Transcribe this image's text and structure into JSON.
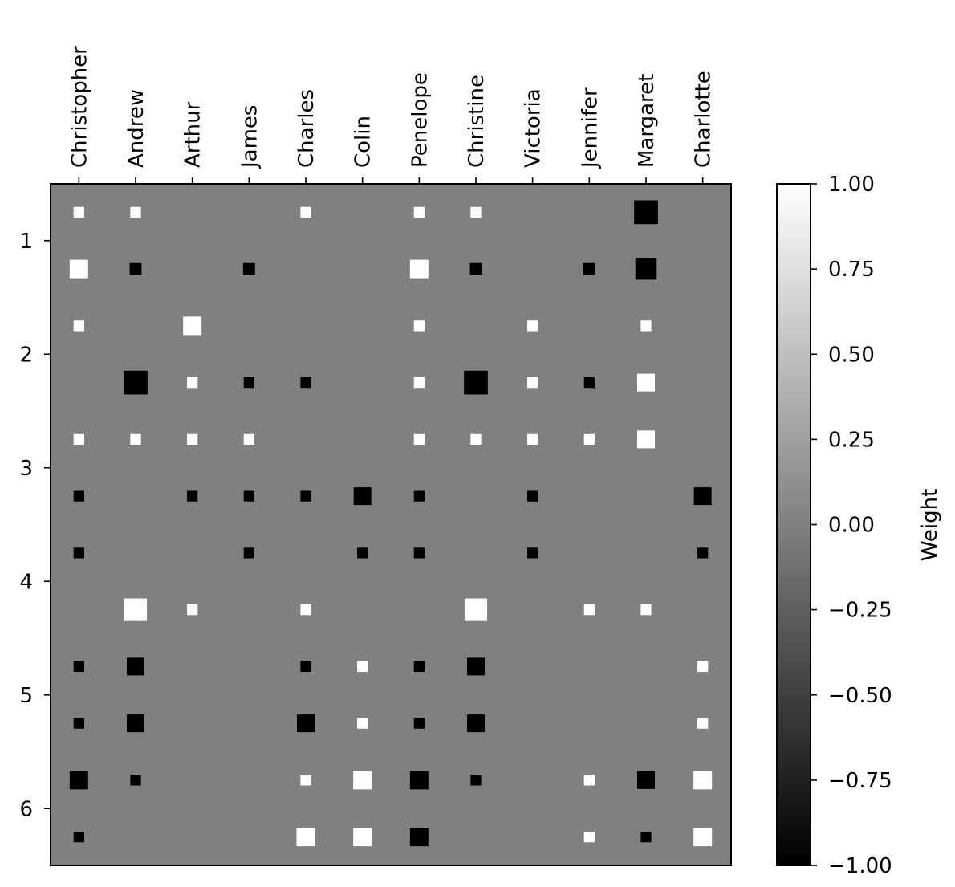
{
  "chart_data": {
    "type": "heatmap",
    "style": "hinton",
    "columns": [
      "Christopher",
      "Andrew",
      "Arthur",
      "James",
      "Charles",
      "Colin",
      "Penelope",
      "Christine",
      "Victoria",
      "Jennifer",
      "Margaret",
      "Charlotte"
    ],
    "row_values": [
      0.75,
      1.25,
      1.75,
      2.25,
      2.75,
      3.25,
      3.75,
      4.25,
      4.75,
      5.25,
      5.75,
      6.25
    ],
    "y_axis": {
      "range": [
        0.5,
        6.5
      ],
      "inverted": true,
      "ticks": [
        "1",
        "2",
        "3",
        "4",
        "5",
        "6"
      ],
      "tick_values": [
        1,
        2,
        3,
        4,
        5,
        6
      ]
    },
    "background_color": "#808080",
    "grid": false,
    "colorbar": {
      "label": "Weight",
      "range": [
        -1.0,
        1.0
      ],
      "ticks": [
        "1.00",
        "0.75",
        "0.50",
        "0.25",
        "0.00",
        "−0.25",
        "−0.50",
        "−0.75",
        "−1.00"
      ],
      "tick_values": [
        1.0,
        0.75,
        0.5,
        0.25,
        0.0,
        -0.25,
        -0.5,
        -0.75,
        -1.0
      ],
      "colormap": "gray"
    },
    "weights": [
      [
        0.2,
        0.2,
        0,
        0,
        0.2,
        0,
        0.2,
        0.2,
        0,
        0,
        -1.0,
        0
      ],
      [
        0.6,
        -0.25,
        0,
        -0.25,
        0,
        0,
        0.6,
        -0.25,
        0,
        -0.25,
        -0.8,
        0
      ],
      [
        0.2,
        0,
        0.6,
        0,
        0,
        0,
        0.2,
        0,
        0.2,
        0,
        0.2,
        0
      ],
      [
        0,
        -1.0,
        0.2,
        -0.2,
        -0.2,
        0,
        0.2,
        -1.0,
        0.2,
        -0.2,
        0.55,
        0
      ],
      [
        0.2,
        0.2,
        0.2,
        0.2,
        0,
        0,
        0.2,
        0.2,
        0.2,
        0.2,
        0.55,
        0
      ],
      [
        -0.2,
        0,
        -0.2,
        -0.2,
        -0.2,
        -0.55,
        -0.2,
        0,
        -0.2,
        0,
        0,
        -0.55
      ],
      [
        -0.2,
        0,
        0,
        -0.2,
        0,
        -0.2,
        -0.2,
        0,
        -0.2,
        0,
        0,
        -0.2
      ],
      [
        0,
        0.9,
        0.2,
        0,
        0.2,
        0,
        0,
        0.9,
        0,
        0.2,
        0.2,
        0
      ],
      [
        -0.2,
        -0.55,
        0,
        0,
        -0.2,
        0.2,
        -0.2,
        -0.55,
        0,
        0,
        0,
        0.2
      ],
      [
        -0.2,
        -0.55,
        0,
        0,
        -0.55,
        0.2,
        -0.2,
        -0.55,
        0,
        0,
        0,
        0.2
      ],
      [
        -0.6,
        -0.2,
        0,
        0,
        0.2,
        0.6,
        -0.6,
        -0.2,
        0,
        0.2,
        -0.55,
        0.6
      ],
      [
        -0.2,
        0,
        0,
        0,
        0.6,
        0.6,
        -0.6,
        0,
        0,
        0.2,
        -0.2,
        0.6
      ]
    ]
  }
}
